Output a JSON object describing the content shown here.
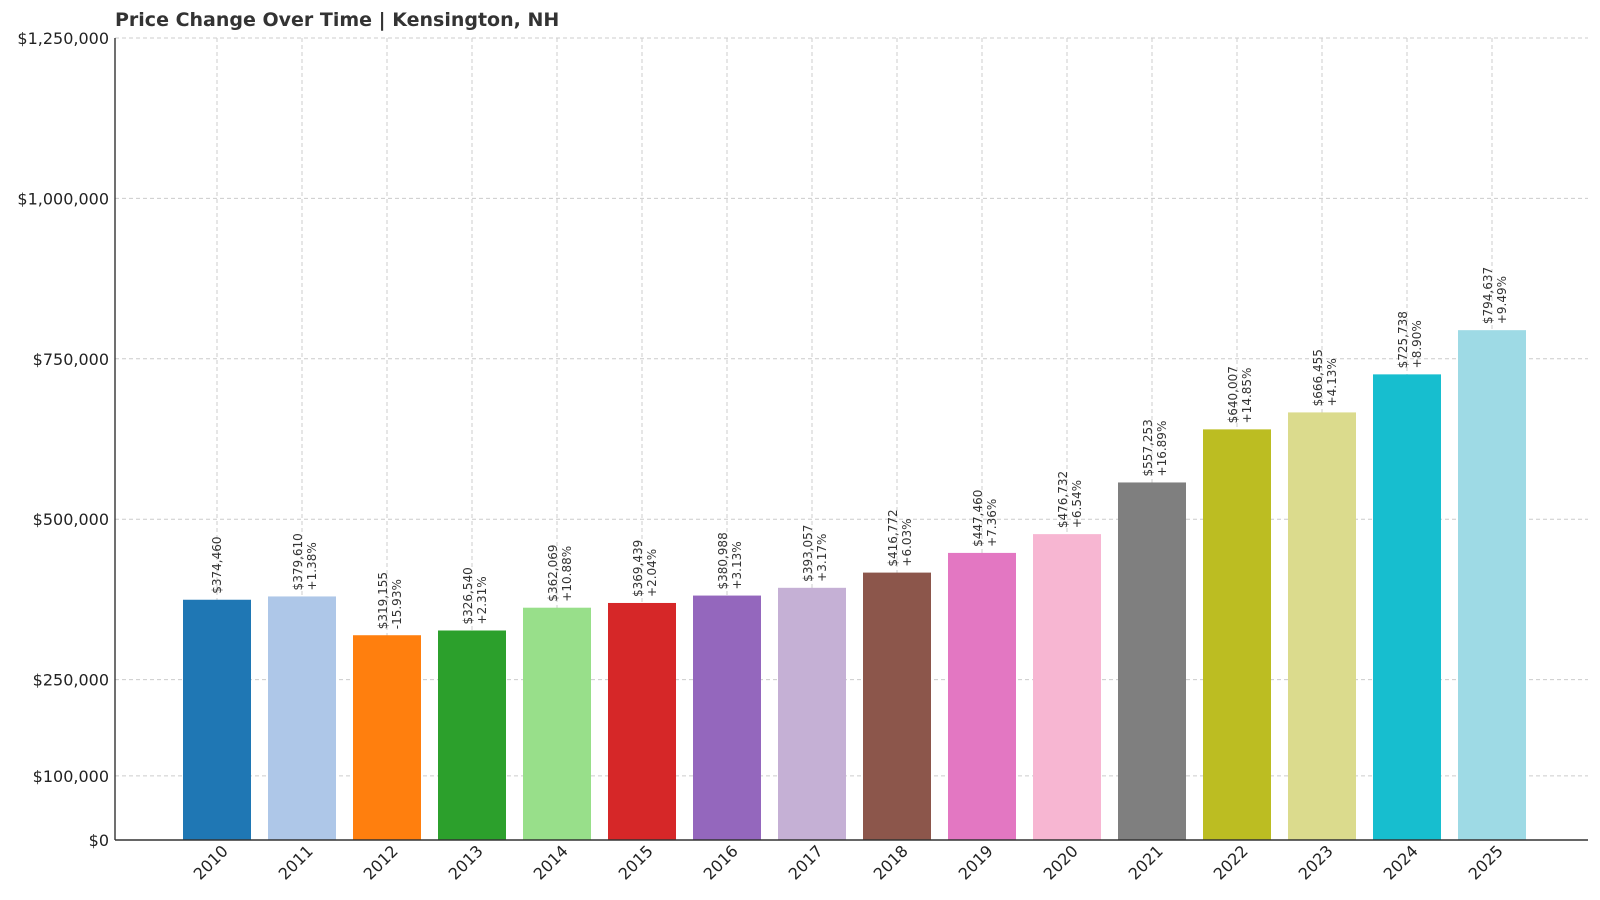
{
  "chart_data": {
    "type": "bar",
    "title": "Price Change Over Time | Kensington, NH",
    "xlabel": "",
    "ylabel": "",
    "categories": [
      "2010",
      "2011",
      "2012",
      "2013",
      "2014",
      "2015",
      "2016",
      "2017",
      "2018",
      "2019",
      "2020",
      "2021",
      "2022",
      "2023",
      "2024",
      "2025"
    ],
    "values": [
      374460,
      379610,
      319155,
      326540,
      362069,
      369439,
      380988,
      393057,
      416772,
      447460,
      476732,
      557253,
      640007,
      666455,
      725738,
      794637
    ],
    "value_labels": [
      "$374,460",
      "$379,610",
      "$319,155",
      "$326,540",
      "$362,069",
      "$369,439",
      "$380,988",
      "$393,057",
      "$416,772",
      "$447,460",
      "$476,732",
      "$557,253",
      "$640,007",
      "$666,455",
      "$725,738",
      "$794,637"
    ],
    "change_labels": [
      "",
      "+1.38%",
      "-15.93%",
      "+2.31%",
      "+10.88%",
      "+2.04%",
      "+3.13%",
      "+3.17%",
      "+6.03%",
      "+7.36%",
      "+6.54%",
      "+16.89%",
      "+14.85%",
      "+4.13%",
      "+8.90%",
      "+9.49%"
    ],
    "colors": [
      "#1f77b4",
      "#aec7e8",
      "#ff7f0e",
      "#2ca02c",
      "#98df8a",
      "#d62728",
      "#9467bd",
      "#c5b0d5",
      "#8c564b",
      "#e377c2",
      "#f7b6d2",
      "#7f7f7f",
      "#bcbd22",
      "#dbdb8d",
      "#17becf",
      "#9edae5"
    ],
    "ylim": [
      0,
      1250000
    ],
    "yticks": [
      0,
      100000,
      250000,
      500000,
      750000,
      1000000,
      1250000
    ],
    "ytick_labels": [
      "$0",
      "$100,000",
      "$250,000",
      "$500,000",
      "$750,000",
      "$1,000,000",
      "$1,250,000"
    ],
    "grid": true
  }
}
